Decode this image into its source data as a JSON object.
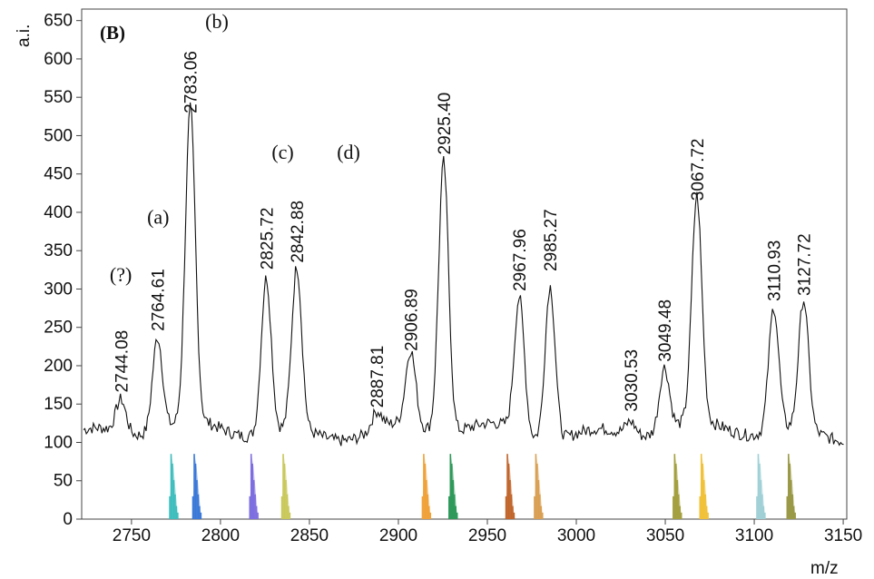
{
  "chart_data": {
    "type": "line",
    "panel_label": "(B)",
    "ylabel": "a.i.",
    "xlabel": "m/z",
    "xlim": [
      2722,
      3152
    ],
    "ylim": [
      0,
      665
    ],
    "grid": false,
    "x_ticks": [
      2750,
      2800,
      2850,
      2900,
      2950,
      3000,
      3050,
      3100,
      3150
    ],
    "y_ticks": [
      0,
      50,
      100,
      150,
      200,
      250,
      300,
      350,
      400,
      450,
      500,
      550,
      600,
      650
    ],
    "baseline": 115,
    "peaks": [
      {
        "mz": 2744.08,
        "height": 158,
        "label": "2744.08"
      },
      {
        "mz": 2764.61,
        "height": 238,
        "label": "2764.61"
      },
      {
        "mz": 2783.06,
        "height": 522,
        "label": "2783.06"
      },
      {
        "mz": 2825.72,
        "height": 318,
        "label": "2825.72"
      },
      {
        "mz": 2842.88,
        "height": 327,
        "label": "2842.88"
      },
      {
        "mz": 2887.81,
        "height": 138,
        "label": "2887.81"
      },
      {
        "mz": 2906.89,
        "height": 212,
        "label": "2906.89"
      },
      {
        "mz": 2925.4,
        "height": 468,
        "label": "2925.40"
      },
      {
        "mz": 2967.96,
        "height": 290,
        "label": "2967.96"
      },
      {
        "mz": 2985.27,
        "height": 316,
        "label": "2985.27"
      },
      {
        "mz": 3030.53,
        "height": 133,
        "label": "3030.53"
      },
      {
        "mz": 3049.48,
        "height": 198,
        "label": "3049.48"
      },
      {
        "mz": 3067.72,
        "height": 408,
        "label": "3067.72"
      },
      {
        "mz": 3110.93,
        "height": 277,
        "label": "3110.93"
      },
      {
        "mz": 3127.72,
        "height": 284,
        "label": "3127.72"
      }
    ],
    "annotations": [
      {
        "text": "(?)",
        "mz": 2744,
        "y": 310
      },
      {
        "text": "(a)",
        "mz": 2765,
        "y": 385
      },
      {
        "text": "(b)",
        "mz": 2798,
        "y": 640
      },
      {
        "text": "(c)",
        "mz": 2835,
        "y": 470
      },
      {
        "text": "(d)",
        "mz": 2872,
        "y": 470
      }
    ],
    "isotope_clusters": [
      {
        "mz": 2773,
        "height": 85,
        "color": "#3dbdbd"
      },
      {
        "mz": 2786,
        "height": 85,
        "color": "#3a78d8"
      },
      {
        "mz": 2818,
        "height": 85,
        "color": "#7f6fe0"
      },
      {
        "mz": 2836,
        "height": 85,
        "color": "#c8c85a"
      },
      {
        "mz": 2915,
        "height": 85,
        "color": "#f0a23a"
      },
      {
        "mz": 2930,
        "height": 85,
        "color": "#2f9a5a"
      },
      {
        "mz": 2962,
        "height": 85,
        "color": "#c0642a"
      },
      {
        "mz": 2978,
        "height": 85,
        "color": "#d9a055"
      },
      {
        "mz": 3056,
        "height": 85,
        "color": "#a4a040"
      },
      {
        "mz": 3071,
        "height": 85,
        "color": "#f0c23a"
      },
      {
        "mz": 3103,
        "height": 85,
        "color": "#9fd0d6"
      },
      {
        "mz": 3120,
        "height": 85,
        "color": "#9a9a48"
      }
    ]
  }
}
